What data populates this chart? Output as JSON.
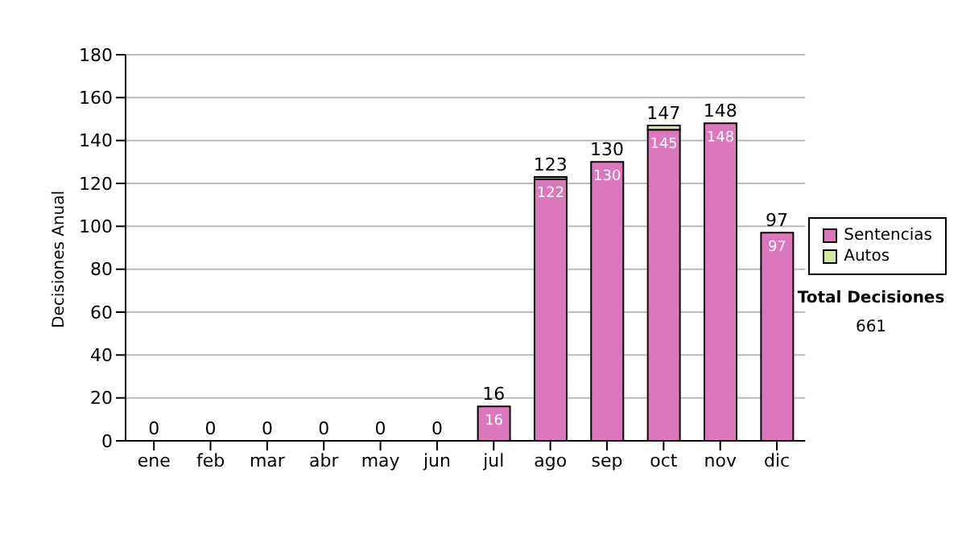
{
  "chart_data": {
    "type": "bar",
    "stacked": true,
    "ylabel": "Decisiones Anual",
    "categories": [
      "ene",
      "feb",
      "mar",
      "abr",
      "may",
      "jun",
      "jul",
      "ago",
      "sep",
      "oct",
      "nov",
      "dic"
    ],
    "series": [
      {
        "name": "Sentencias",
        "color": "#dd77bb",
        "values": [
          0,
          0,
          0,
          0,
          0,
          0,
          16,
          122,
          130,
          145,
          148,
          97
        ],
        "value_labels": [
          null,
          null,
          null,
          null,
          null,
          null,
          "16",
          "122",
          "130",
          "145",
          "148",
          "97"
        ]
      },
      {
        "name": "Autos",
        "color": "#d4e8a0",
        "values": [
          0,
          0,
          0,
          0,
          0,
          0,
          0,
          1,
          0,
          2,
          0,
          0
        ]
      }
    ],
    "totals": [
      "0",
      "0",
      "0",
      "0",
      "0",
      "0",
      "16",
      "123",
      "130",
      "147",
      "148",
      "97"
    ],
    "ylim": [
      0,
      180
    ],
    "yticks": [
      0,
      20,
      40,
      60,
      80,
      100,
      120,
      140,
      160,
      180
    ],
    "grid": "y",
    "legend": "right",
    "annotations": [
      "Total Decisiones",
      "661"
    ]
  }
}
